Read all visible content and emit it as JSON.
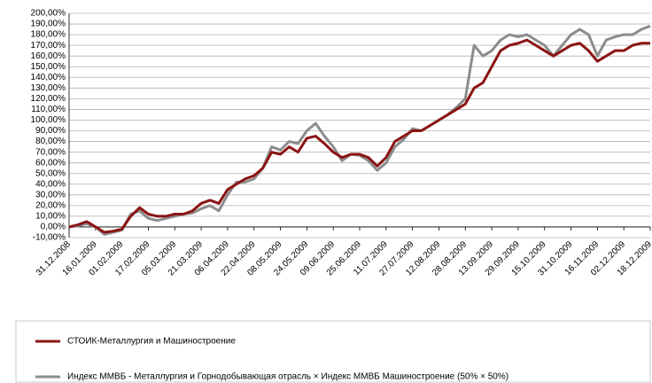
{
  "chart_data": {
    "type": "line",
    "categories": [
      "31.12.2008",
      null,
      null,
      "16.01.2009",
      null,
      null,
      "01.02.2009",
      null,
      null,
      "17.02.2009",
      null,
      null,
      "05.03.2009",
      null,
      null,
      "21.03.2009",
      null,
      null,
      "06.04.2009",
      null,
      null,
      "22.04.2009",
      null,
      null,
      "08.05.2009",
      null,
      null,
      "24.05.2009",
      null,
      null,
      "09.06.2009",
      null,
      null,
      "25.06.2009",
      null,
      null,
      "11.07.2009",
      null,
      null,
      "27.07.2009",
      null,
      null,
      "12.08.2009",
      null,
      null,
      "28.08.2009",
      null,
      null,
      "13.09.2009",
      null,
      null,
      "29.09.2009",
      null,
      null,
      "15.10.2009",
      null,
      null,
      "31.10.2009",
      null,
      null,
      "16.11.2009",
      null,
      null,
      "02.12.2009",
      null,
      null,
      "18.12.2009"
    ],
    "series": [
      {
        "name": "СТОИК-Металлургия и Машиностроение",
        "color": "#8b1414",
        "values": [
          0,
          2,
          5,
          0,
          -5,
          -4,
          -2,
          10,
          18,
          12,
          10,
          10,
          12,
          12,
          15,
          22,
          25,
          22,
          35,
          40,
          45,
          48,
          55,
          70,
          68,
          75,
          70,
          83,
          85,
          78,
          70,
          65,
          68,
          68,
          65,
          57,
          65,
          80,
          85,
          90,
          90,
          95,
          100,
          105,
          110,
          115,
          130,
          135,
          150,
          165,
          170,
          172,
          175,
          170,
          165,
          160,
          165,
          170,
          172,
          165,
          155,
          160,
          165,
          165,
          170,
          172,
          172
        ]
      },
      {
        "name": "Индекс ММВБ - Металлургия и Горнодобывающая отрасль × Индекс ММВБ Машиностроение (50% × 50%)",
        "color": "#8c8c8c",
        "values": [
          0,
          1,
          3,
          0,
          -7,
          -5,
          -3,
          12,
          15,
          8,
          6,
          8,
          10,
          12,
          13,
          17,
          20,
          15,
          30,
          42,
          42,
          45,
          55,
          75,
          72,
          80,
          78,
          90,
          97,
          85,
          75,
          62,
          68,
          67,
          62,
          53,
          60,
          75,
          82,
          92,
          90,
          95,
          100,
          105,
          112,
          120,
          170,
          160,
          165,
          175,
          180,
          178,
          180,
          175,
          170,
          160,
          170,
          180,
          185,
          180,
          160,
          175,
          178,
          180,
          180,
          185,
          188
        ]
      }
    ],
    "ylim": [
      -10,
      200
    ],
    "yticks": [
      {
        "value": -10,
        "label": "-10,00%"
      },
      {
        "value": 0,
        "label": "0,00%"
      },
      {
        "value": 10,
        "label": "10,00%"
      },
      {
        "value": 20,
        "label": "20,00%"
      },
      {
        "value": 30,
        "label": "30,00%"
      },
      {
        "value": 40,
        "label": "40,00%"
      },
      {
        "value": 50,
        "label": "50,00%"
      },
      {
        "value": 60,
        "label": "60,00%"
      },
      {
        "value": 70,
        "label": "70,00%"
      },
      {
        "value": 80,
        "label": "80,00%"
      },
      {
        "value": 90,
        "label": "90,00%"
      },
      {
        "value": 100,
        "label": "100,00%"
      },
      {
        "value": 110,
        "label": "110,00%"
      },
      {
        "value": 120,
        "label": "120,00%"
      },
      {
        "value": 130,
        "label": "130,00%"
      },
      {
        "value": 140,
        "label": "140,00%"
      },
      {
        "value": 150,
        "label": "150,00%"
      },
      {
        "value": 160,
        "label": "160,00%"
      },
      {
        "value": 170,
        "label": "170,00%"
      },
      {
        "value": 180,
        "label": "180,00%"
      },
      {
        "value": 190,
        "label": "190,00%"
      },
      {
        "value": 200,
        "label": "200,00%"
      }
    ],
    "grid": true
  }
}
